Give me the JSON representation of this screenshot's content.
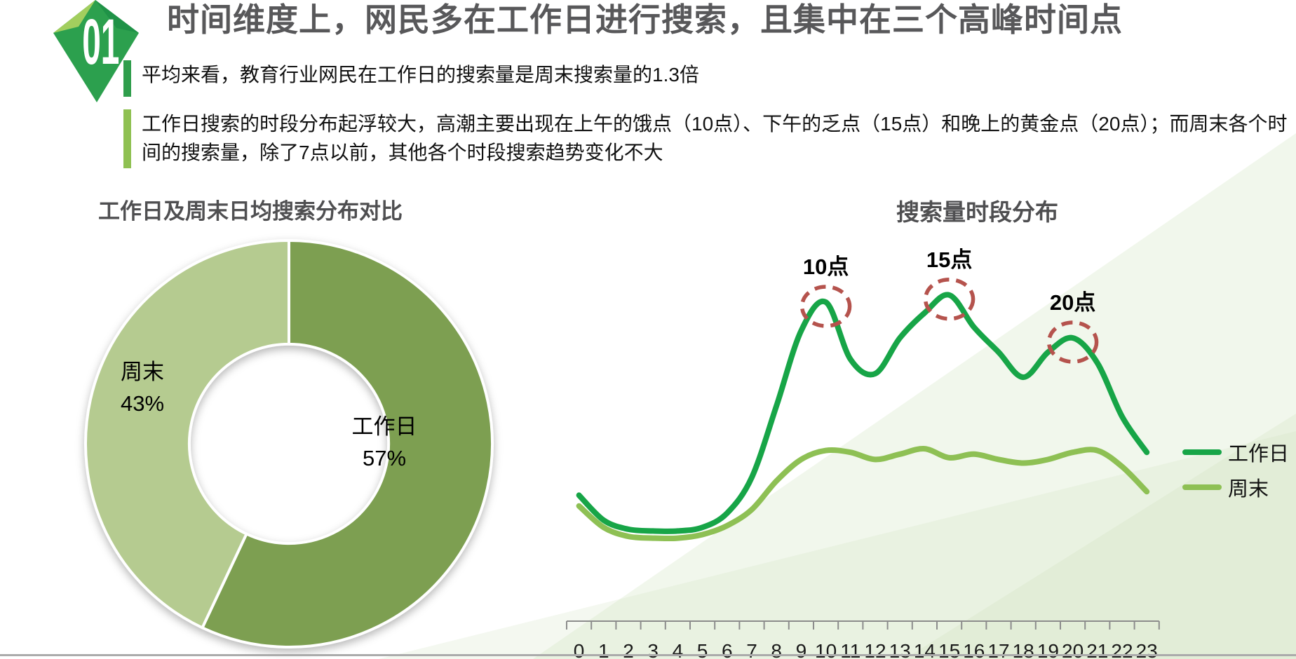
{
  "page": {
    "badge_number": "01",
    "title": "时间维度上，网民多在工作日进行搜索，且集中在三个高峰时间点",
    "bullets": [
      {
        "text": "平均来看，教育行业网民在工作日的搜索量是周末搜索量的1.3倍"
      },
      {
        "text": "工作日搜索的时段分布起浮较大，高潮主要出现在上午的饿点（10点）、下午的乏点（15点）和晚上的黄金点（20点）；而周末各个时间的搜索量，除了7点以前，其他各个时段搜索趋势变化不大"
      }
    ]
  },
  "colors": {
    "title_gray": "#58585a",
    "badge_green": "#2ca04e",
    "badge_light_facet": "#a2ce5e",
    "badge_dark_facet": "#1f9247",
    "bullet1_bar": "#2f9e4c",
    "bullet2_bar": "#8fc152",
    "peak_circle": "#b5534d",
    "axis_gray": "#8c8c8c",
    "bg_wedge": "#cfe3bf"
  },
  "chart_data": [
    {
      "type": "pie",
      "donut": true,
      "title": "工作日及周末日均搜索分布对比",
      "labels": [
        "工作日",
        "周末"
      ],
      "values": [
        57,
        43
      ],
      "value_labels": [
        "57%",
        "43%"
      ],
      "colors": [
        "#7d9f51",
        "#b5cb90"
      ],
      "start_angle_deg": 0,
      "direction": "clockwise",
      "hole_ratio": 0.49
    },
    {
      "type": "line",
      "title": "搜索量时段分布",
      "x": [
        0,
        1,
        2,
        3,
        4,
        5,
        6,
        7,
        8,
        9,
        10,
        11,
        12,
        13,
        14,
        15,
        16,
        17,
        18,
        19,
        20,
        21,
        22,
        23
      ],
      "xlabel": "",
      "ylabel": "",
      "ylim": [
        0,
        100
      ],
      "grid": false,
      "legend_position": "right",
      "series": [
        {
          "name": "工作日",
          "color": "#17a547",
          "values": [
            36,
            29,
            26.5,
            26,
            26,
            27,
            31,
            41,
            61,
            82,
            90,
            74,
            70,
            80,
            87,
            92,
            83,
            76,
            69,
            76,
            80,
            73,
            58,
            48
          ]
        },
        {
          "name": "周末",
          "color": "#8ec054",
          "values": [
            33,
            27,
            24.5,
            24,
            24,
            25,
            27.5,
            32,
            40,
            46,
            48.5,
            48,
            46,
            47.5,
            49,
            46.5,
            47.5,
            46,
            45,
            46,
            48,
            48.5,
            44,
            37
          ]
        }
      ],
      "annotations": [
        {
          "label": "10点",
          "series": "工作日",
          "x": 10
        },
        {
          "label": "15点",
          "series": "工作日",
          "x": 15
        },
        {
          "label": "20点",
          "series": "工作日",
          "x": 20
        }
      ]
    }
  ]
}
